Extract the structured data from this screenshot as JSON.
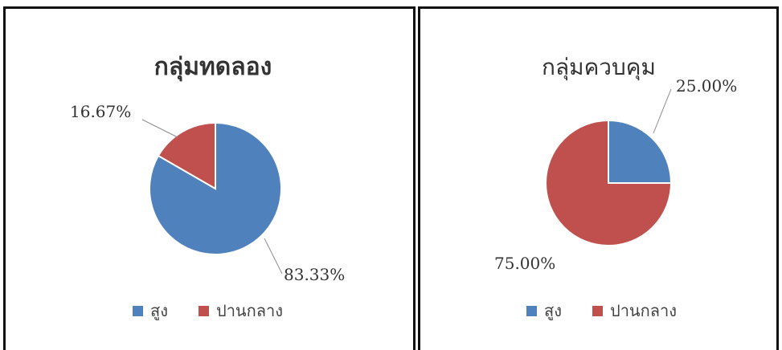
{
  "chart_data": [
    {
      "type": "pie",
      "title": "กลุ่มทดลอง",
      "categories": [
        "สูง",
        "ปานกลาง"
      ],
      "values": [
        83.33,
        16.67
      ],
      "data_labels": [
        "83.33%",
        "16.67%"
      ],
      "colors": [
        "#4f81bd",
        "#c0504d"
      ],
      "legend": "bottom"
    },
    {
      "type": "pie",
      "title": "กลุ่มควบคุม",
      "categories": [
        "สูง",
        "ปานกลาง"
      ],
      "values": [
        25.0,
        75.0
      ],
      "data_labels": [
        "25.00%",
        "75.00%"
      ],
      "colors": [
        "#4f81bd",
        "#c0504d"
      ],
      "legend": "bottom"
    }
  ]
}
